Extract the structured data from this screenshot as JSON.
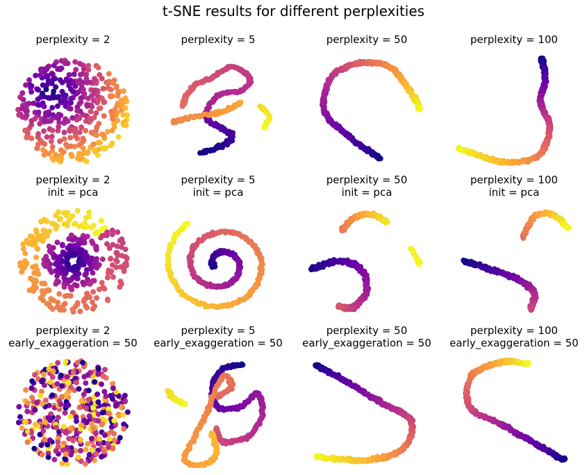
{
  "figure": {
    "title": "t-SNE results for different perplexities"
  },
  "chart_data": {
    "type": "scatter",
    "colormap": "plasma",
    "colormap_stops": [
      "#0d0887",
      "#6a00a8",
      "#b12a90",
      "#e16462",
      "#fca636",
      "#f0f921"
    ],
    "axes_visible": false,
    "grid": false,
    "rows": 3,
    "cols": 4,
    "panels": [
      {
        "title_lines": [
          "perplexity = 2"
        ],
        "shape": "disc"
      },
      {
        "title_lines": [
          "perplexity = 5"
        ],
        "shape": "tangled-string"
      },
      {
        "title_lines": [
          "perplexity = 50"
        ],
        "shape": "arc"
      },
      {
        "title_lines": [
          "perplexity = 100"
        ],
        "shape": "j-curve"
      },
      {
        "title_lines": [
          "perplexity = 2",
          "init = pca"
        ],
        "shape": "rings"
      },
      {
        "title_lines": [
          "perplexity = 5",
          "init = pca"
        ],
        "shape": "spiral"
      },
      {
        "title_lines": [
          "perplexity = 50",
          "init = pca"
        ],
        "shape": "c-arc-with-pieces"
      },
      {
        "title_lines": [
          "perplexity = 100",
          "init = pca"
        ],
        "shape": "two-arcs"
      },
      {
        "title_lines": [
          "perplexity = 2",
          "early_exaggeration = 50"
        ],
        "shape": "mixed-disc"
      },
      {
        "title_lines": [
          "perplexity = 5",
          "early_exaggeration = 50"
        ],
        "shape": "loops"
      },
      {
        "title_lines": [
          "perplexity = 50",
          "early_exaggeration = 50"
        ],
        "shape": "s-curve"
      },
      {
        "title_lines": [
          "perplexity = 100",
          "early_exaggeration = 50"
        ],
        "shape": "s-curve-reversed"
      }
    ]
  }
}
